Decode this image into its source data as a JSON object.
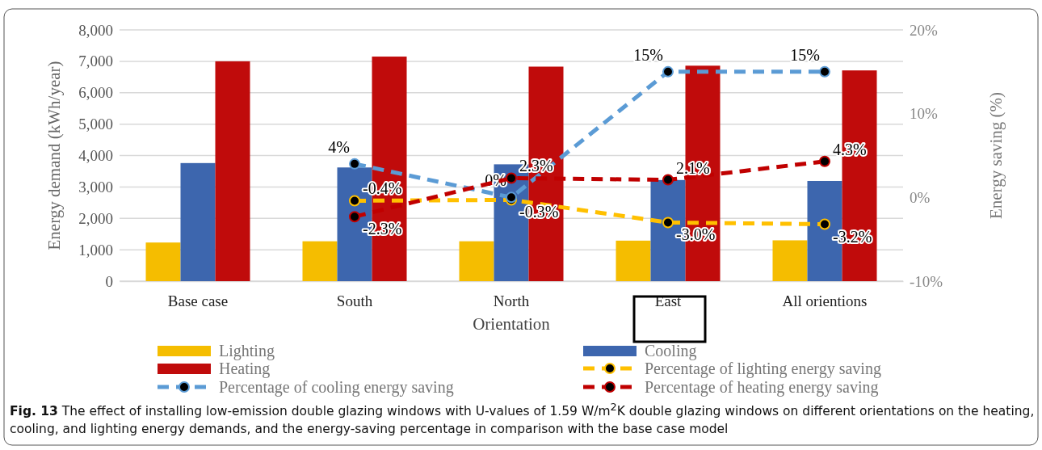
{
  "chart_data": {
    "type": "bar",
    "xlabel": "Orientation",
    "ylabel": "Energy demand (kWh/year)",
    "y2label": "Energy saving (%)",
    "categories": [
      "Base case",
      "South",
      "North",
      "East",
      "All orientions"
    ],
    "series": [
      {
        "name": "Lighting",
        "color": "#f5bd00",
        "values": [
          1230,
          1270,
          1270,
          1290,
          1300
        ]
      },
      {
        "name": "Cooling",
        "color": "#3d66ae",
        "values": [
          3760,
          3620,
          3720,
          3220,
          3190
        ]
      },
      {
        "name": "Heating",
        "color": "#c00b0b",
        "values": [
          7000,
          7150,
          6830,
          6860,
          6710
        ]
      },
      {
        "name": "Percentage of lighting energy saving",
        "type": "line",
        "axis": "y2",
        "color": "#ffc000",
        "values": [
          null,
          -0.4,
          -0.3,
          -3.0,
          -3.2
        ],
        "value_labels": [
          null,
          "-0.4%",
          "-0.3%",
          "-3.0%",
          "-3.2%"
        ]
      },
      {
        "name": "Percentage of cooling energy saving",
        "type": "line",
        "axis": "y2",
        "color": "#5b9bd5",
        "values": [
          null,
          4,
          0,
          15,
          15
        ],
        "value_labels": [
          null,
          "4%",
          "0%",
          "15%",
          "15%"
        ]
      },
      {
        "name": "Percentage of heating energy saving",
        "type": "line",
        "axis": "y2",
        "color": "#c00000",
        "values": [
          null,
          -2.3,
          2.3,
          2.1,
          4.3
        ],
        "value_labels": [
          null,
          "-2.3%",
          "2.3%",
          "2.1%",
          "4.3%"
        ]
      }
    ],
    "ylim": [
      0,
      8000
    ],
    "yticks": [
      {
        "value": 0,
        "label": "0"
      },
      {
        "value": 1000,
        "label": "1,000"
      },
      {
        "value": 2000,
        "label": "2,000"
      },
      {
        "value": 3000,
        "label": "3,000"
      },
      {
        "value": 4000,
        "label": "4,000"
      },
      {
        "value": 5000,
        "label": "5,000"
      },
      {
        "value": 6000,
        "label": "6,000"
      },
      {
        "value": 7000,
        "label": "7,000"
      },
      {
        "value": 8000,
        "label": "8,000"
      }
    ],
    "y2lim": [
      -10,
      20
    ],
    "y2ticks": [
      {
        "value": -10,
        "label": "-10%"
      },
      {
        "value": 0,
        "label": "0%"
      },
      {
        "value": 10,
        "label": "10%"
      },
      {
        "value": 20,
        "label": "20%"
      }
    ],
    "grid": "y",
    "legend": "bottom",
    "marker": "circle",
    "line_style": "dashed",
    "annotations": [
      "Fig. 13 The effect of installing low-emission double glazing windows with U-values of 1.59 W/m$^{2}$K double glazing windows on different orientations on the heating, cooling, and lighting energy demands, and the energy-saving percentage in comparison with the base case model"
    ]
  }
}
